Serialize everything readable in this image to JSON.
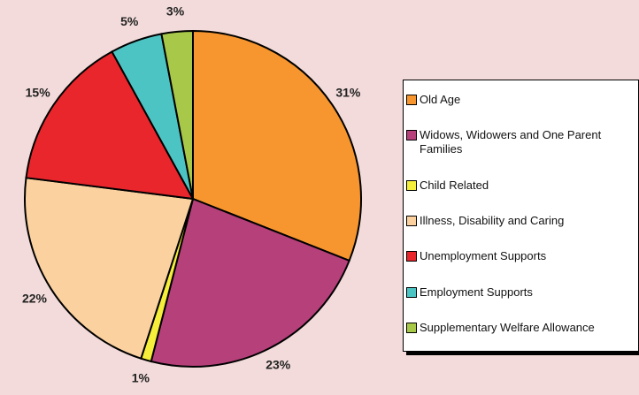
{
  "chart_data": {
    "type": "pie",
    "categories": [
      "Old Age",
      "Widows, Widowers and One Parent Families",
      "Child Related",
      "Illness, Disability and Caring",
      "Unemployment Supports",
      "Employment Supports",
      "Supplementary Welfare Allowance"
    ],
    "values": [
      31,
      23,
      1,
      22,
      15,
      5,
      3
    ],
    "value_labels": [
      "31%",
      "23%",
      "1%",
      "22%",
      "15%",
      "5%",
      "3%"
    ],
    "colors": [
      "#f7962f",
      "#b5407a",
      "#f5ee3a",
      "#fbd29f",
      "#e8262c",
      "#4dc4c4",
      "#a8c84a"
    ],
    "legend": "right"
  }
}
